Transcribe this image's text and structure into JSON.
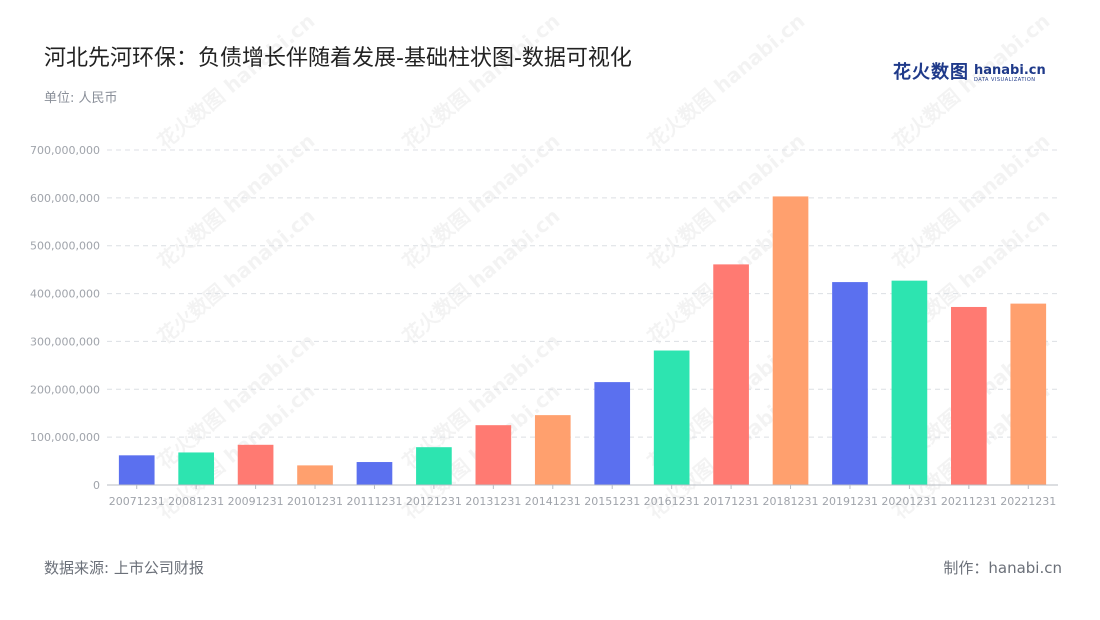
{
  "header": {
    "title": "河北先河环保：负债增长伴随着发展-基础柱状图-数据可视化",
    "unit": "单位: 人民币"
  },
  "logo": {
    "cn": "花火数图",
    "en": "hanabi.cn",
    "sub": "DATA VISUALIZATION"
  },
  "footer": {
    "source": "数据来源: 上市公司财报",
    "maker": "制作：hanabi.cn"
  },
  "colors": {
    "blue": "#5b70ef",
    "green": "#2de4b0",
    "red": "#ff7a72",
    "orange": "#ffa06e",
    "grid": "#dcdfe4",
    "axis": "#b8bcc3"
  },
  "chart_data": {
    "type": "bar",
    "categories": [
      "20071231",
      "20081231",
      "20091231",
      "20101231",
      "20111231",
      "20121231",
      "20131231",
      "20141231",
      "20151231",
      "20161231",
      "20171231",
      "20181231",
      "20191231",
      "20201231",
      "20211231",
      "20221231"
    ],
    "values": [
      62000000,
      68000000,
      84000000,
      41000000,
      48000000,
      79000000,
      125000000,
      146000000,
      215000000,
      281000000,
      461000000,
      603000000,
      424000000,
      427000000,
      372000000,
      379000000
    ],
    "bar_colors": [
      "#5b70ef",
      "#2de4b0",
      "#ff7a72",
      "#ffa06e",
      "#5b70ef",
      "#2de4b0",
      "#ff7a72",
      "#ffa06e",
      "#5b70ef",
      "#2de4b0",
      "#ff7a72",
      "#ffa06e",
      "#5b70ef",
      "#2de4b0",
      "#ff7a72",
      "#ffa06e"
    ],
    "yticks": [
      0,
      100000000,
      200000000,
      300000000,
      400000000,
      500000000,
      600000000,
      700000000
    ],
    "ytick_labels": [
      "0",
      "100,000,000",
      "200,000,000",
      "300,000,000",
      "400,000,000",
      "500,000,000",
      "600,000,000",
      "700,000,000"
    ],
    "ylim": [
      0,
      700000000
    ],
    "grid": true,
    "legend": "none"
  }
}
